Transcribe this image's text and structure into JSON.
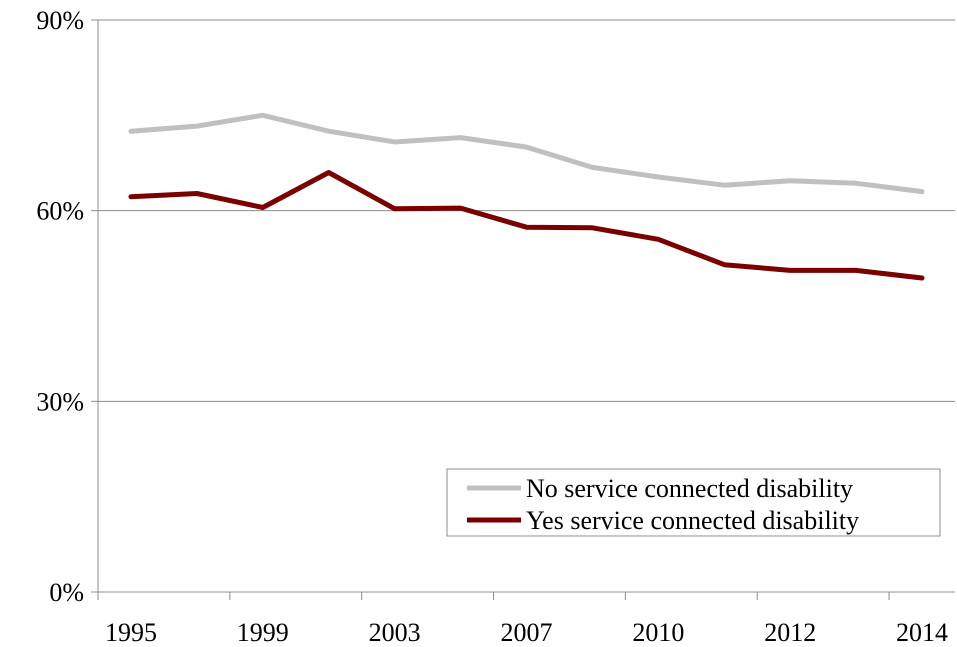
{
  "chart_data": {
    "type": "line",
    "x": [
      "1995",
      "1997",
      "1999",
      "2001",
      "2003",
      "2005",
      "2007",
      "2008",
      "2010",
      "2011",
      "2012",
      "2013",
      "2014"
    ],
    "x_tick_labels": [
      "1995",
      "1999",
      "2003",
      "2007",
      "2010",
      "2012",
      "2014"
    ],
    "y_tick_labels": [
      "0%",
      "30%",
      "60%",
      "90%"
    ],
    "ylim": [
      0,
      90
    ],
    "grid": true,
    "legend_position": "bottom-right",
    "series": [
      {
        "name": "No service connected disability",
        "color": "#c0c0c0",
        "values": [
          72.5,
          73.3,
          75.0,
          72.5,
          70.8,
          71.5,
          70.0,
          66.8,
          65.3,
          64.0,
          64.7,
          64.3,
          63.0
        ]
      },
      {
        "name": "Yes service connected disability",
        "color": "#7b0000",
        "values": [
          62.2,
          62.7,
          60.5,
          66.0,
          60.3,
          60.4,
          57.4,
          57.3,
          55.5,
          51.5,
          50.6,
          50.6,
          49.4
        ]
      }
    ]
  }
}
